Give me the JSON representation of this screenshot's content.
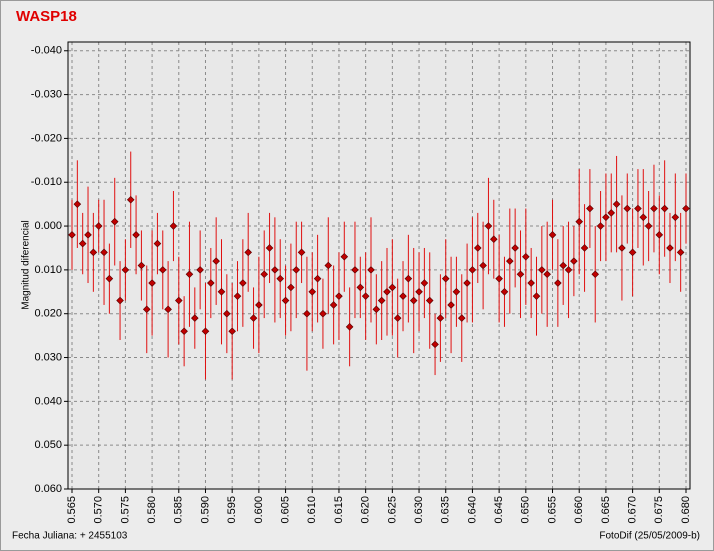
{
  "chart_data": {
    "type": "scatter",
    "title": "WASP18",
    "y_label": "Magnitud diferencial",
    "x_label": "Fecha Juliana:  + 2455103",
    "credit": "FotoDif (25/05/2009-b)",
    "color": "#c00000",
    "error_color": "#e01010",
    "grid": true,
    "y_inverted": true,
    "xlim": [
      0.56425,
      0.68075
    ],
    "ylim": [
      -0.042,
      0.06
    ],
    "xticks": [
      0.565,
      {
        "value": 0.57,
        "label": "0.570"
      },
      0.575,
      {
        "value": 0.58,
        "label": "0.580"
      },
      0.585,
      {
        "value": 0.59,
        "label": "0.590"
      },
      0.595,
      {
        "value": 0.6,
        "label": "0.600"
      },
      0.605,
      {
        "value": 0.61,
        "label": "0.610"
      },
      0.615,
      {
        "value": 0.62,
        "label": "0.620"
      },
      0.625,
      {
        "value": 0.63,
        "label": "0.630"
      },
      0.635,
      {
        "value": 0.64,
        "label": "0.640"
      },
      0.645,
      {
        "value": 0.65,
        "label": "0.650"
      },
      0.655,
      {
        "value": 0.66,
        "label": "0.660"
      },
      0.665,
      {
        "value": 0.67,
        "label": "0.670"
      },
      0.675,
      {
        "value": 0.68,
        "label": "0.680"
      }
    ],
    "yticks": [
      {
        "value": -0.04,
        "label": "-0.040"
      },
      {
        "value": -0.03,
        "label": "-0.030"
      },
      {
        "value": -0.02,
        "label": "-0.020"
      },
      {
        "value": -0.01,
        "label": "-0.010"
      },
      {
        "value": 0,
        "label": "0.000"
      },
      {
        "value": 0.01,
        "label": "0.010"
      },
      {
        "value": 0.02,
        "label": "0.020"
      },
      {
        "value": 0.03,
        "label": "0.030"
      },
      {
        "value": 0.04,
        "label": "0.040"
      },
      {
        "value": 0.05,
        "label": "0.050"
      },
      {
        "value": 0.06,
        "label": "0.060"
      }
    ],
    "x": [
      0.565,
      0.566,
      0.567,
      0.568,
      0.569,
      0.57,
      0.571,
      0.572,
      0.573,
      0.574,
      0.575,
      0.576,
      0.577,
      0.578,
      0.579,
      0.58,
      0.581,
      0.582,
      0.583,
      0.584,
      0.585,
      0.586,
      0.587,
      0.588,
      0.589,
      0.59,
      0.591,
      0.592,
      0.593,
      0.594,
      0.595,
      0.596,
      0.597,
      0.598,
      0.599,
      0.6,
      0.601,
      0.602,
      0.603,
      0.604,
      0.605,
      0.606,
      0.607,
      0.608,
      0.609,
      0.61,
      0.611,
      0.612,
      0.613,
      0.614,
      0.615,
      0.616,
      0.617,
      0.618,
      0.619,
      0.62,
      0.621,
      0.622,
      0.623,
      0.624,
      0.625,
      0.626,
      0.627,
      0.628,
      0.629,
      0.63,
      0.631,
      0.632,
      0.633,
      0.634,
      0.635,
      0.636,
      0.637,
      0.638,
      0.639,
      0.64,
      0.641,
      0.642,
      0.643,
      0.644,
      0.645,
      0.646,
      0.647,
      0.648,
      0.649,
      0.65,
      0.651,
      0.652,
      0.653,
      0.654,
      0.655,
      0.656,
      0.657,
      0.658,
      0.659,
      0.66,
      0.661,
      0.662,
      0.663,
      0.664,
      0.665,
      0.666,
      0.667,
      0.668,
      0.669,
      0.67,
      0.671,
      0.672,
      0.673,
      0.674,
      0.675,
      0.676,
      0.677,
      0.678,
      0.679,
      0.68
    ],
    "values": [
      0.002,
      -0.005,
      0.004,
      0.002,
      0.006,
      0.0,
      0.006,
      0.012,
      -0.001,
      0.017,
      0.01,
      -0.006,
      0.002,
      0.009,
      0.019,
      0.013,
      0.004,
      0.01,
      0.019,
      0.0,
      0.017,
      0.024,
      0.011,
      0.021,
      0.01,
      0.024,
      0.013,
      0.008,
      0.015,
      0.02,
      0.024,
      0.016,
      0.013,
      0.006,
      0.021,
      0.018,
      0.011,
      0.005,
      0.01,
      0.012,
      0.017,
      0.014,
      0.01,
      0.006,
      0.02,
      0.015,
      0.012,
      0.02,
      0.009,
      0.018,
      0.016,
      0.007,
      0.023,
      0.01,
      0.014,
      0.016,
      0.01,
      0.019,
      0.017,
      0.015,
      0.014,
      0.021,
      0.016,
      0.012,
      0.017,
      0.015,
      0.013,
      0.017,
      0.027,
      0.021,
      0.012,
      0.018,
      0.015,
      0.021,
      0.013,
      0.01,
      0.005,
      0.009,
      0.0,
      0.003,
      0.012,
      0.015,
      0.008,
      0.005,
      0.011,
      0.007,
      0.013,
      0.016,
      0.01,
      0.011,
      0.002,
      0.013,
      0.009,
      0.01,
      0.008,
      -0.001,
      0.005,
      -0.004,
      0.011,
      0.0,
      -0.002,
      -0.003,
      -0.005,
      0.005,
      -0.004,
      0.006,
      -0.004,
      -0.002,
      0.0,
      -0.004,
      0.002,
      -0.004,
      0.005,
      -0.002,
      0.006,
      -0.004
    ],
    "errors": [
      0.008,
      0.01,
      0.007,
      0.011,
      0.009,
      0.006,
      0.012,
      0.008,
      0.01,
      0.009,
      0.007,
      0.011,
      0.009,
      0.008,
      0.01,
      0.012,
      0.007,
      0.009,
      0.011,
      0.008,
      0.01,
      0.008,
      0.012,
      0.007,
      0.009,
      0.011,
      0.008,
      0.01,
      0.012,
      0.009,
      0.011,
      0.008,
      0.01,
      0.009,
      0.007,
      0.011,
      0.01,
      0.008,
      0.012,
      0.009,
      0.008,
      0.01,
      0.011,
      0.007,
      0.013,
      0.009,
      0.01,
      0.008,
      0.011,
      0.009,
      0.01,
      0.008,
      0.009,
      0.011,
      0.007,
      0.01,
      0.012,
      0.008,
      0.009,
      0.01,
      0.011,
      0.009,
      0.008,
      0.01,
      0.012,
      0.009,
      0.008,
      0.011,
      0.007,
      0.01,
      0.009,
      0.011,
      0.008,
      0.01,
      0.009,
      0.012,
      0.008,
      0.01,
      0.011,
      0.009,
      0.01,
      0.008,
      0.012,
      0.009,
      0.01,
      0.011,
      0.008,
      0.009,
      0.01,
      0.012,
      0.008,
      0.01,
      0.009,
      0.011,
      0.008,
      0.012,
      0.01,
      0.009,
      0.011,
      0.008,
      0.01,
      0.009,
      0.011,
      0.012,
      0.008,
      0.01,
      0.009,
      0.011,
      0.008,
      0.01,
      0.009,
      0.011,
      0.008,
      0.01,
      0.009,
      0.008
    ]
  }
}
